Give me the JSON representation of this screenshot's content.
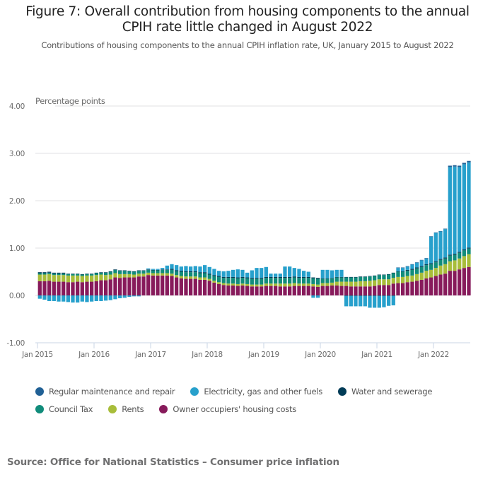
{
  "header": {
    "title_line1": "Figure 7: Overall contribution from housing components to the annual",
    "title_line2": "CPIH rate little changed in August 2022",
    "subtitle": "Contributions of housing components to the annual CPIH inflation rate, UK, January 2015 to August 2022"
  },
  "source": "Source: Office for National Statistics – Consumer price inflation",
  "chart_data": {
    "type": "bar",
    "stacked": true,
    "title": "Figure 7: Overall contribution from housing components to the annual CPIH rate little changed in August 2022",
    "subtitle": "Contributions of housing components to the annual CPIH inflation rate, UK, January 2015 to August 2022",
    "xlabel": "",
    "ylabel": "Percentage points",
    "ylim": [
      -1,
      4
    ],
    "yticks": [
      4,
      3,
      2,
      1,
      0,
      -1
    ],
    "ytick_labels": [
      "4.00",
      "3.00",
      "2.00",
      "1.00",
      "0.00",
      "-1.00"
    ],
    "xtick_labels": [
      "Jan 2015",
      "Jan 2016",
      "Jan 2017",
      "Jan 2018",
      "Jan 2019",
      "Jan 2020",
      "Jan 2021",
      "Jan 2022"
    ],
    "xtick_month_index": [
      0,
      12,
      24,
      36,
      48,
      60,
      72,
      84
    ],
    "grid": true,
    "legend_position": "bottom",
    "start": "Jan 2015",
    "end": "Aug 2022",
    "months_count": 92,
    "series": [
      {
        "name": "Owner occupiers' housing costs",
        "color": "#871a5b",
        "values": [
          0.3,
          0.3,
          0.31,
          0.29,
          0.29,
          0.29,
          0.28,
          0.28,
          0.29,
          0.28,
          0.29,
          0.29,
          0.3,
          0.32,
          0.32,
          0.34,
          0.38,
          0.37,
          0.38,
          0.38,
          0.38,
          0.4,
          0.4,
          0.43,
          0.42,
          0.42,
          0.42,
          0.42,
          0.41,
          0.38,
          0.36,
          0.35,
          0.35,
          0.35,
          0.33,
          0.33,
          0.31,
          0.27,
          0.24,
          0.22,
          0.21,
          0.21,
          0.2,
          0.21,
          0.2,
          0.19,
          0.19,
          0.19,
          0.2,
          0.2,
          0.2,
          0.19,
          0.19,
          0.19,
          0.2,
          0.2,
          0.2,
          0.2,
          0.19,
          0.18,
          0.2,
          0.2,
          0.21,
          0.21,
          0.2,
          0.2,
          0.19,
          0.19,
          0.19,
          0.19,
          0.19,
          0.2,
          0.22,
          0.22,
          0.22,
          0.25,
          0.26,
          0.26,
          0.28,
          0.29,
          0.31,
          0.33,
          0.36,
          0.38,
          0.41,
          0.44,
          0.46,
          0.52,
          0.52,
          0.55,
          0.58,
          0.6
        ]
      },
      {
        "name": "Rents",
        "color": "#a8bd3a",
        "values": [
          0.14,
          0.14,
          0.14,
          0.14,
          0.14,
          0.14,
          0.14,
          0.14,
          0.13,
          0.13,
          0.13,
          0.13,
          0.13,
          0.12,
          0.11,
          0.1,
          0.09,
          0.08,
          0.07,
          0.07,
          0.06,
          0.06,
          0.06,
          0.05,
          0.05,
          0.05,
          0.05,
          0.05,
          0.05,
          0.05,
          0.05,
          0.05,
          0.05,
          0.05,
          0.05,
          0.05,
          0.04,
          0.04,
          0.04,
          0.04,
          0.04,
          0.04,
          0.04,
          0.04,
          0.04,
          0.04,
          0.04,
          0.04,
          0.05,
          0.05,
          0.05,
          0.06,
          0.06,
          0.06,
          0.06,
          0.05,
          0.05,
          0.05,
          0.05,
          0.05,
          0.06,
          0.06,
          0.06,
          0.08,
          0.09,
          0.09,
          0.1,
          0.1,
          0.11,
          0.11,
          0.12,
          0.12,
          0.12,
          0.12,
          0.12,
          0.12,
          0.13,
          0.13,
          0.13,
          0.13,
          0.14,
          0.15,
          0.16,
          0.16,
          0.17,
          0.19,
          0.2,
          0.2,
          0.22,
          0.23,
          0.25,
          0.27
        ]
      },
      {
        "name": "Council Tax",
        "color": "#118c7b",
        "values": [
          0.03,
          0.03,
          0.03,
          0.03,
          0.03,
          0.03,
          0.03,
          0.03,
          0.03,
          0.03,
          0.03,
          0.03,
          0.04,
          0.04,
          0.05,
          0.06,
          0.07,
          0.07,
          0.07,
          0.06,
          0.06,
          0.06,
          0.06,
          0.06,
          0.06,
          0.06,
          0.07,
          0.07,
          0.08,
          0.08,
          0.09,
          0.09,
          0.09,
          0.09,
          0.09,
          0.09,
          0.09,
          0.1,
          0.11,
          0.11,
          0.12,
          0.12,
          0.12,
          0.12,
          0.12,
          0.12,
          0.12,
          0.12,
          0.12,
          0.12,
          0.12,
          0.12,
          0.12,
          0.12,
          0.12,
          0.12,
          0.12,
          0.12,
          0.12,
          0.12,
          0.09,
          0.09,
          0.09,
          0.09,
          0.09,
          0.09,
          0.09,
          0.09,
          0.09,
          0.09,
          0.09,
          0.09,
          0.09,
          0.09,
          0.1,
          0.1,
          0.11,
          0.11,
          0.11,
          0.12,
          0.12,
          0.12,
          0.12,
          0.12,
          0.12,
          0.12,
          0.12,
          0.12,
          0.12,
          0.12,
          0.12,
          0.12
        ]
      },
      {
        "name": "Water and sewerage",
        "color": "#003c57",
        "values": [
          0.02,
          0.02,
          0.02,
          0.02,
          0.02,
          0.02,
          0.01,
          0.01,
          0.01,
          0.01,
          0.01,
          0.01,
          0.01,
          0.01,
          0.01,
          0.01,
          0.01,
          0.01,
          0.01,
          0.01,
          0.01,
          0.01,
          0.01,
          0.01,
          0.01,
          0.01,
          0.01,
          0.01,
          0.02,
          0.02,
          0.02,
          0.02,
          0.02,
          0.02,
          0.02,
          0.02,
          0.02,
          0.02,
          0.02,
          0.02,
          0.02,
          0.02,
          0.02,
          0.02,
          0.02,
          0.02,
          0.02,
          0.02,
          0.02,
          0.02,
          0.02,
          0.02,
          0.02,
          0.02,
          0.02,
          0.02,
          0.02,
          0.02,
          0.02,
          0.02,
          0.01,
          0.01,
          0.01,
          0.01,
          0.01,
          0.01,
          0.01,
          0.01,
          0.01,
          0.01,
          0.01,
          0.01,
          0.01,
          0.01,
          0.01,
          0.01,
          0.01,
          0.01,
          0.02,
          0.02,
          0.02,
          0.02,
          0.02,
          0.02,
          0.02,
          0.02,
          0.02,
          0.02,
          0.02,
          0.02,
          0.02,
          0.02
        ]
      },
      {
        "name": "Electricity, gas and other fuels",
        "color": "#27a0cc",
        "values": [
          -0.07,
          -0.09,
          -0.12,
          -0.12,
          -0.13,
          -0.13,
          -0.14,
          -0.15,
          -0.15,
          -0.13,
          -0.14,
          -0.13,
          -0.12,
          -0.12,
          -0.11,
          -0.1,
          -0.08,
          -0.06,
          -0.05,
          -0.03,
          -0.02,
          -0.02,
          0.0,
          0.02,
          0.02,
          0.02,
          0.03,
          0.08,
          0.1,
          0.11,
          0.09,
          0.11,
          0.1,
          0.11,
          0.12,
          0.15,
          0.14,
          0.13,
          0.11,
          0.12,
          0.13,
          0.15,
          0.17,
          0.15,
          0.1,
          0.16,
          0.21,
          0.21,
          0.21,
          0.07,
          0.07,
          0.07,
          0.22,
          0.22,
          0.18,
          0.17,
          0.13,
          0.11,
          0.0,
          0.0,
          0.18,
          0.18,
          0.16,
          0.15,
          0.15,
          0.0,
          0.0,
          0.0,
          0.0,
          0.0,
          0.0,
          0.0,
          0.0,
          0.0,
          0.0,
          0.0,
          0.07,
          0.07,
          0.07,
          0.09,
          0.1,
          0.12,
          0.12,
          0.56,
          0.6,
          0.58,
          0.6,
          1.85,
          1.84,
          1.79,
          1.8,
          1.8
        ]
      },
      {
        "name": "Regular maintenance and repair",
        "color": "#206095",
        "values": [
          0.0,
          0.0,
          0.0,
          0.0,
          0.0,
          0.0,
          0.0,
          0.0,
          0.0,
          0.0,
          0.0,
          0.0,
          0.0,
          0.0,
          0.0,
          0.0,
          0.0,
          0.0,
          0.0,
          0.0,
          0.0,
          0.0,
          0.0,
          0.0,
          0.0,
          0.0,
          0.0,
          0.0,
          0.0,
          0.0,
          0.0,
          0.0,
          0.0,
          0.0,
          0.0,
          0.0,
          0.0,
          0.0,
          0.0,
          0.0,
          0.0,
          0.0,
          0.0,
          0.0,
          0.0,
          0.0,
          0.0,
          0.0,
          0.0,
          0.0,
          0.0,
          0.0,
          0.0,
          0.0,
          0.0,
          0.0,
          0.0,
          0.0,
          0.0,
          0.0,
          0.0,
          0.0,
          0.0,
          0.0,
          0.0,
          0.0,
          0.0,
          0.0,
          0.0,
          0.0,
          0.0,
          0.0,
          0.0,
          0.0,
          0.0,
          0.0,
          0.01,
          0.01,
          0.01,
          0.01,
          0.01,
          0.01,
          0.01,
          0.01,
          0.01,
          0.01,
          0.01,
          0.03,
          0.03,
          0.03,
          0.03,
          0.03
        ]
      }
    ],
    "negatives": {
      "Electricity, gas and other fuels": {
        "note": "negative contributions shown below zero",
        "values_neg": [
          -0.07,
          -0.09,
          -0.12,
          -0.12,
          -0.13,
          -0.13,
          -0.14,
          -0.15,
          -0.15,
          -0.13,
          -0.14,
          -0.13,
          -0.12,
          -0.12,
          -0.11,
          -0.1,
          -0.08,
          -0.06,
          -0.05,
          -0.03,
          -0.02,
          -0.02,
          0,
          0,
          0,
          0,
          0,
          0,
          0,
          0,
          0,
          0,
          0,
          0,
          0,
          0,
          0,
          0,
          0,
          0,
          0,
          0,
          0,
          0,
          0,
          0,
          0,
          0,
          0,
          0,
          0,
          0,
          0,
          0,
          0,
          0,
          0,
          0,
          -0.05,
          -0.05,
          0,
          0,
          0,
          0,
          0,
          -0.22,
          -0.22,
          -0.22,
          -0.22,
          -0.22,
          -0.25,
          -0.25,
          -0.25,
          -0.24,
          -0.21,
          -0.2,
          0,
          0,
          0,
          0,
          0,
          0,
          0,
          0,
          0,
          0,
          0,
          0,
          0,
          0,
          0,
          0
        ]
      },
      "Water and sewerage": {
        "values_neg": [
          0,
          0,
          0,
          0,
          0,
          0,
          0,
          0,
          0,
          0,
          0,
          0,
          0,
          0,
          0,
          0,
          0,
          0,
          0,
          0,
          0,
          0,
          0,
          0,
          0,
          0,
          0,
          0,
          0,
          0,
          0,
          0,
          0,
          0,
          0,
          0,
          0,
          0,
          0,
          0,
          0,
          0,
          0,
          0,
          0,
          0,
          0,
          0,
          0,
          0,
          0,
          0,
          0,
          0,
          0,
          0,
          0,
          0,
          0,
          0,
          0,
          0,
          0,
          0,
          0,
          -0.01,
          -0.01,
          -0.01,
          -0.01,
          -0.01,
          -0.01,
          -0.01,
          -0.01,
          -0.01,
          -0.01,
          -0.01,
          0,
          0,
          0,
          0,
          0,
          0,
          0,
          0,
          0,
          0,
          0,
          0,
          0,
          0,
          0,
          0
        ]
      }
    }
  },
  "legend": [
    {
      "label": "Regular maintenance and repair",
      "color": "#206095"
    },
    {
      "label": "Electricity, gas and other fuels",
      "color": "#27a0cc"
    },
    {
      "label": "Water and sewerage",
      "color": "#003c57"
    },
    {
      "label": "Council Tax",
      "color": "#118c7b"
    },
    {
      "label": "Rents",
      "color": "#a8bd3a"
    },
    {
      "label": "Owner occupiers' housing costs",
      "color": "#871a5b"
    }
  ]
}
